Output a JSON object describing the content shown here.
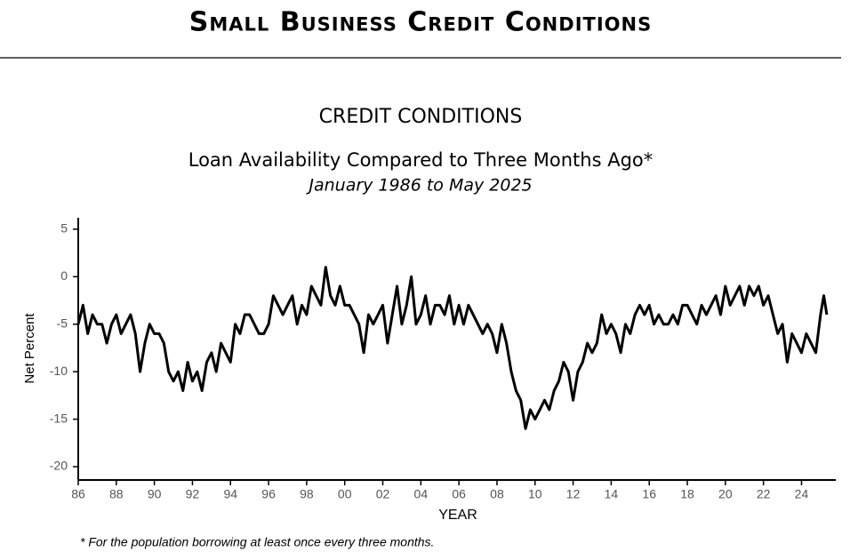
{
  "chart_data": {
    "type": "line",
    "header": "Small Business Credit Conditions",
    "title": "CREDIT CONDITIONS",
    "subtitle": "Loan Availability Compared to Three Months Ago*",
    "date_range": "January 1986 to May 2025",
    "ylabel": "Net Percent",
    "xlabel": "YEAR",
    "footnote": "* For the population borrowing at least once every three months.",
    "x": [
      1986,
      1986.25,
      1986.5,
      1986.75,
      1987,
      1987.25,
      1987.5,
      1987.75,
      1988,
      1988.25,
      1988.5,
      1988.75,
      1989,
      1989.25,
      1989.5,
      1989.75,
      1990,
      1990.25,
      1990.5,
      1990.75,
      1991,
      1991.25,
      1991.5,
      1991.75,
      1992,
      1992.25,
      1992.5,
      1992.75,
      1993,
      1993.25,
      1993.5,
      1993.75,
      1994,
      1994.25,
      1994.5,
      1994.75,
      1995,
      1995.25,
      1995.5,
      1995.75,
      1996,
      1996.25,
      1996.5,
      1996.75,
      1997,
      1997.25,
      1997.5,
      1997.75,
      1998,
      1998.25,
      1998.5,
      1998.75,
      1999,
      1999.25,
      1999.5,
      1999.75,
      2000,
      2000.25,
      2000.5,
      2000.75,
      2001,
      2001.25,
      2001.5,
      2001.75,
      2002,
      2002.25,
      2002.5,
      2002.75,
      2003,
      2003.25,
      2003.5,
      2003.75,
      2004,
      2004.25,
      2004.5,
      2004.75,
      2005,
      2005.25,
      2005.5,
      2005.75,
      2006,
      2006.25,
      2006.5,
      2006.75,
      2007,
      2007.25,
      2007.5,
      2007.75,
      2008,
      2008.25,
      2008.5,
      2008.75,
      2009,
      2009.25,
      2009.5,
      2009.75,
      2010,
      2010.25,
      2010.5,
      2010.75,
      2011,
      2011.25,
      2011.5,
      2011.75,
      2012,
      2012.25,
      2012.5,
      2012.75,
      2013,
      2013.25,
      2013.5,
      2013.75,
      2014,
      2014.25,
      2014.5,
      2014.75,
      2015,
      2015.25,
      2015.5,
      2015.75,
      2016,
      2016.25,
      2016.5,
      2016.75,
      2017,
      2017.25,
      2017.5,
      2017.75,
      2018,
      2018.25,
      2018.5,
      2018.75,
      2019,
      2019.25,
      2019.5,
      2019.75,
      2020,
      2020.25,
      2020.5,
      2020.75,
      2021,
      2021.25,
      2021.5,
      2021.75,
      2022,
      2022.25,
      2022.5,
      2022.75,
      2023,
      2023.25,
      2023.5,
      2023.75,
      2024,
      2024.25,
      2024.5,
      2024.75,
      2025,
      2025.17,
      2025.33
    ],
    "series": [
      {
        "name": "Net Percent",
        "color": "#000000",
        "values": [
          -5,
          -3,
          -6,
          -4,
          -5,
          -5,
          -7,
          -5,
          -4,
          -6,
          -5,
          -4,
          -6,
          -10,
          -7,
          -5,
          -6,
          -6,
          -7,
          -10,
          -11,
          -10,
          -12,
          -9,
          -11,
          -10,
          -12,
          -9,
          -8,
          -10,
          -7,
          -8,
          -9,
          -5,
          -6,
          -4,
          -4,
          -5,
          -6,
          -6,
          -5,
          -2,
          -3,
          -4,
          -3,
          -2,
          -5,
          -3,
          -4,
          -1,
          -2,
          -3,
          1,
          -2,
          -3,
          -1,
          -3,
          -3,
          -4,
          -5,
          -8,
          -4,
          -5,
          -4,
          -3,
          -7,
          -4,
          -1,
          -5,
          -3,
          0,
          -5,
          -4,
          -2,
          -5,
          -3,
          -3,
          -4,
          -2,
          -5,
          -3,
          -5,
          -3,
          -4,
          -5,
          -6,
          -5,
          -6,
          -8,
          -5,
          -7,
          -10,
          -12,
          -13,
          -16,
          -14,
          -15,
          -14,
          -13,
          -14,
          -12,
          -11,
          -9,
          -10,
          -13,
          -10,
          -9,
          -7,
          -8,
          -7,
          -4,
          -6,
          -5,
          -6,
          -8,
          -5,
          -6,
          -4,
          -3,
          -4,
          -3,
          -5,
          -4,
          -5,
          -5,
          -4,
          -5,
          -3,
          -3,
          -4,
          -5,
          -3,
          -4,
          -3,
          -2,
          -4,
          -1,
          -3,
          -2,
          -1,
          -3,
          -1,
          -2,
          -1,
          -3,
          -2,
          -4,
          -6,
          -5,
          -9,
          -6,
          -7,
          -8,
          -6,
          -7,
          -8,
          -4,
          -2,
          -4
        ]
      }
    ],
    "xlim": [
      1986,
      2025.8
    ],
    "xticks": [
      {
        "value": 1986,
        "label": "86"
      },
      {
        "value": 1988,
        "label": "88"
      },
      {
        "value": 1990,
        "label": "90"
      },
      {
        "value": 1992,
        "label": "92"
      },
      {
        "value": 1994,
        "label": "94"
      },
      {
        "value": 1996,
        "label": "96"
      },
      {
        "value": 1998,
        "label": "98"
      },
      {
        "value": 2000,
        "label": "00"
      },
      {
        "value": 2002,
        "label": "02"
      },
      {
        "value": 2004,
        "label": "04"
      },
      {
        "value": 2006,
        "label": "06"
      },
      {
        "value": 2008,
        "label": "08"
      },
      {
        "value": 2010,
        "label": "10"
      },
      {
        "value": 2012,
        "label": "12"
      },
      {
        "value": 2014,
        "label": "14"
      },
      {
        "value": 2016,
        "label": "16"
      },
      {
        "value": 2018,
        "label": "18"
      },
      {
        "value": 2020,
        "label": "20"
      },
      {
        "value": 2022,
        "label": "22"
      },
      {
        "value": 2024,
        "label": "24"
      }
    ],
    "ylim": [
      -21.4,
      6.2
    ],
    "yticks": [
      5,
      0,
      -5,
      -10,
      -15,
      -20
    ],
    "grid": false
  }
}
